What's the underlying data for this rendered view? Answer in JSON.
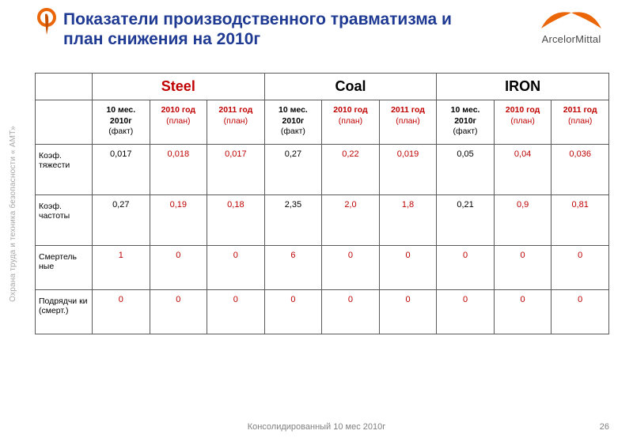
{
  "side_label": "Охрана труда и техника безопасности « АМТ»",
  "title": "Показатели производственного травматизма и план снижения на 2010г",
  "brand": "ArcelorMittal",
  "groups": [
    "Steel",
    "Coal",
    "IRON"
  ],
  "subheaders": {
    "fact": {
      "top": "10 мес. 2010г",
      "bot": "(факт)"
    },
    "plan": {
      "top": "2010 год",
      "bot": "(план)"
    },
    "plan2": {
      "top": "2011 год",
      "bot": "(план)"
    }
  },
  "rows": [
    {
      "label": "Коэф. тяжести",
      "values": [
        "0,017",
        "0,018",
        "0,017",
        "0,27",
        "0,22",
        "0,019",
        "0,05",
        "0,04",
        "0,036"
      ],
      "styles": [
        "b",
        "r",
        "r",
        "b",
        "r",
        "r",
        "b",
        "r",
        "r"
      ]
    },
    {
      "label": "Коэф. частоты",
      "values": [
        "0,27",
        "0,19",
        "0,18",
        "2,35",
        "2,0",
        "1,8",
        "0,21",
        "0,9",
        "0,81"
      ],
      "styles": [
        "b",
        "r",
        "r",
        "b",
        "r",
        "r",
        "b",
        "r",
        "r"
      ]
    },
    {
      "label": "Смертель ные",
      "values": [
        "1",
        "0",
        "0",
        "6",
        "0",
        "0",
        "0",
        "0",
        "0"
      ],
      "styles": [
        "r",
        "r",
        "r",
        "r",
        "r",
        "r",
        "r",
        "r",
        "r"
      ]
    },
    {
      "label": "Подрядчи ки (смерт.)",
      "values": [
        "0",
        "0",
        "0",
        "0",
        "0",
        "0",
        "0",
        "0",
        "0"
      ],
      "styles": [
        "r",
        "r",
        "r",
        "r",
        "r",
        "r",
        "r",
        "r",
        "r"
      ]
    }
  ],
  "footer": "Консолидированный 10 мес 2010г",
  "page_number": "26",
  "colors": {
    "title": "#1f3a93",
    "red": "#c00000",
    "brand_orange": "#eb6608",
    "grey": "#808080"
  }
}
